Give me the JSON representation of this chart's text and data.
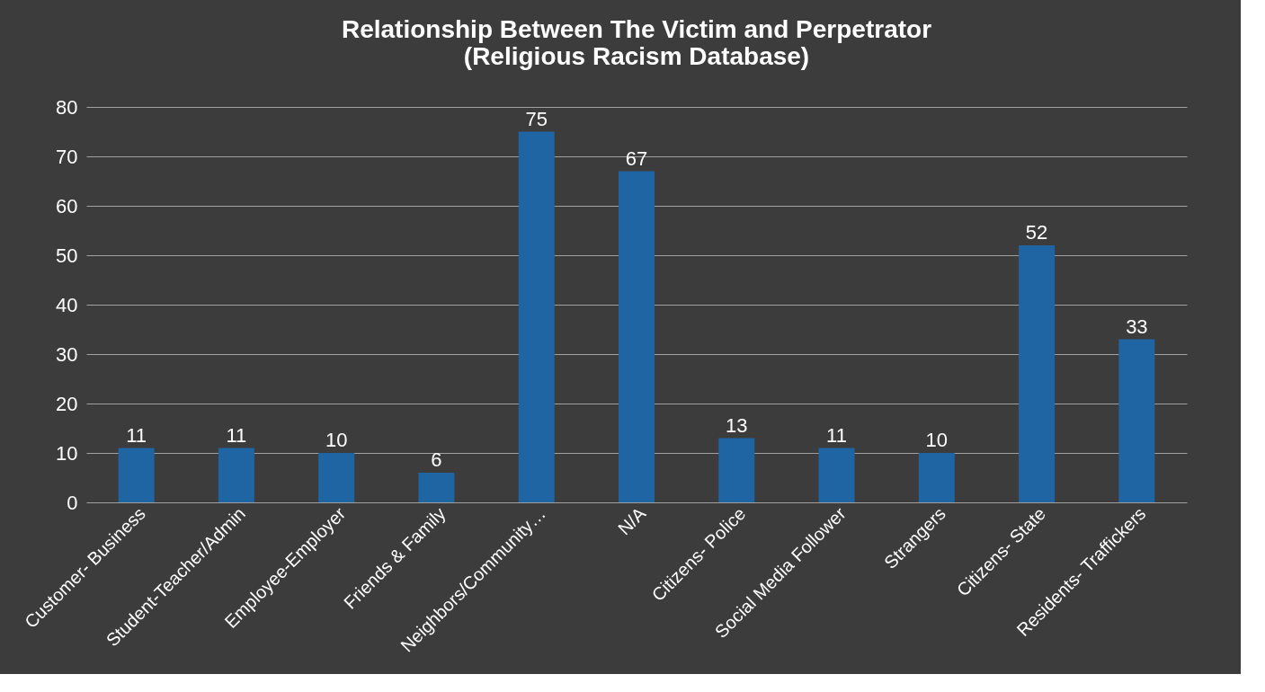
{
  "chart_data": {
    "type": "bar",
    "title": [
      "Relationship Between The Victim and Perpetrator",
      "(Religious Racism Database)"
    ],
    "categories": [
      "Customer- Business",
      "Student-Teacher/Admin",
      "Employee-Employer",
      "Friends & Family",
      "Neighbors/Community…",
      "N/A",
      "Citizens- Police",
      "Social Media Follower",
      "Strangers",
      "Citizens- State",
      "Residents- Traffickers"
    ],
    "values": [
      11,
      11,
      10,
      6,
      75,
      67,
      13,
      11,
      10,
      52,
      33
    ],
    "color": "#1f64a3",
    "ylim": [
      0,
      80
    ],
    "yticks": [
      0,
      10,
      20,
      30,
      40,
      50,
      60,
      70,
      80
    ],
    "grid": "y",
    "data_labels": true
  }
}
